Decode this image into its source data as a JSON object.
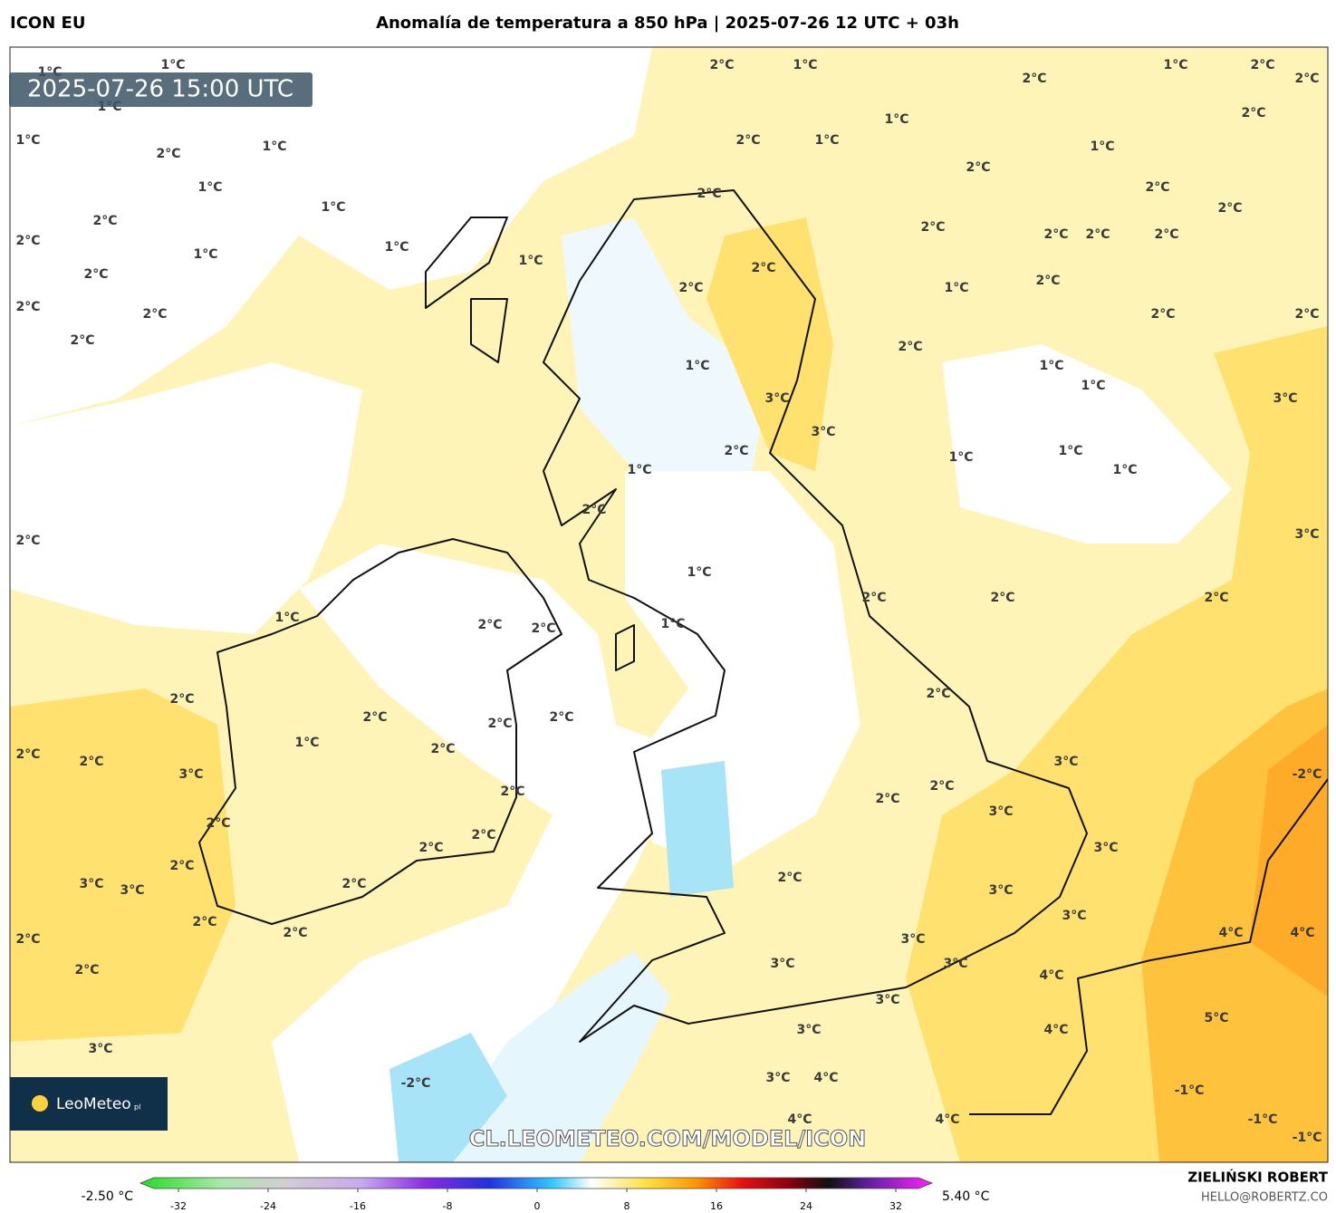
{
  "header": {
    "model": "ICON EU",
    "title": "Anomalía de temperatura a 850 hPa | 2025-07-26 12 UTC + 03h"
  },
  "map": {
    "timestamp": "2025-07-26 15:00 UTC",
    "watermark": "CL.LEOMETEO.COM/MODEL/ICON",
    "logo": "LeoMeteo",
    "logo_suffix": "pl",
    "labels": [
      "1°C",
      "1°C",
      "1°C",
      "1°C",
      "1°C",
      "1°C",
      "1°C",
      "1°C",
      "1°C",
      "1°C",
      "1°C",
      "1°C",
      "1°C",
      "1°C",
      "1°C",
      "1°C",
      "1°C",
      "1°C",
      "1°C",
      "1°C",
      "1°C",
      "1°C",
      "1°C",
      "1°C",
      "1°C",
      "1°C",
      "1°C",
      "2°C",
      "2°C",
      "2°C",
      "2°C",
      "2°C",
      "2°C",
      "2°C",
      "2°C",
      "2°C",
      "2°C",
      "2°C",
      "2°C",
      "2°C",
      "2°C",
      "2°C",
      "2°C",
      "2°C",
      "2°C",
      "2°C",
      "2°C",
      "2°C",
      "2°C",
      "2°C",
      "2°C",
      "2°C",
      "2°C",
      "2°C",
      "2°C",
      "2°C",
      "2°C",
      "2°C",
      "2°C",
      "2°C",
      "2°C",
      "2°C",
      "2°C",
      "2°C",
      "2°C",
      "2°C",
      "2°C",
      "2°C",
      "2°C",
      "2°C",
      "2°C",
      "2°C",
      "2°C",
      "2°C",
      "2°C",
      "2°C",
      "2°C",
      "2°C",
      "2°C",
      "2°C",
      "2°C",
      "2°C",
      "2°C",
      "3°C",
      "3°C",
      "3°C",
      "3°C",
      "3°C",
      "3°C",
      "3°C",
      "3°C",
      "3°C",
      "3°C",
      "3°C",
      "3°C",
      "3°C",
      "3°C",
      "3°C",
      "3°C",
      "3°C",
      "3°C",
      "3°C",
      "4°C",
      "4°C",
      "4°C",
      "4°C",
      "4°C",
      "4°C",
      "4°C",
      "5°C",
      "-1°C",
      "-1°C",
      "-1°C",
      "-2°C",
      "-2°C"
    ]
  },
  "colorbar": {
    "min_label": "-2.50 °C",
    "max_label": "5.40 °C",
    "ticks": [
      -32,
      -24,
      -16,
      -8,
      0,
      8,
      16,
      24,
      32
    ]
  },
  "footer": {
    "author": "ZIELIŃSKI ROBERT",
    "email": "HELLO@ROBERTZ.CO"
  }
}
